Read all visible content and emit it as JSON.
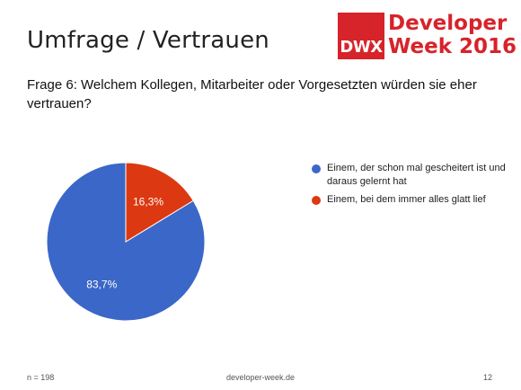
{
  "slide": {
    "title": "Umfrage / Vertrauen",
    "question": "Frage 6: Welchem Kollegen, Mitarbeiter oder Vorgesetzten würden sie eher vertrauen?",
    "footer_left": "n = 198",
    "footer_center": "developer-week.de",
    "footer_right": "12"
  },
  "logo": {
    "badge": "DWX",
    "line1": "Developer",
    "line2": "Week 2016"
  },
  "colors": {
    "brand_red": "#d7232a"
  },
  "chart_data": {
    "type": "pie",
    "series": [
      {
        "name": "Einem, der schon mal gescheitert ist und daraus gelernt hat",
        "value": 83.7,
        "label": "83,7%",
        "color": "#3b67c8"
      },
      {
        "name": "Einem, bei dem immer alles glatt lief",
        "value": 16.3,
        "label": "16,3%",
        "color": "#dc3912"
      }
    ],
    "legend_position": "right"
  }
}
